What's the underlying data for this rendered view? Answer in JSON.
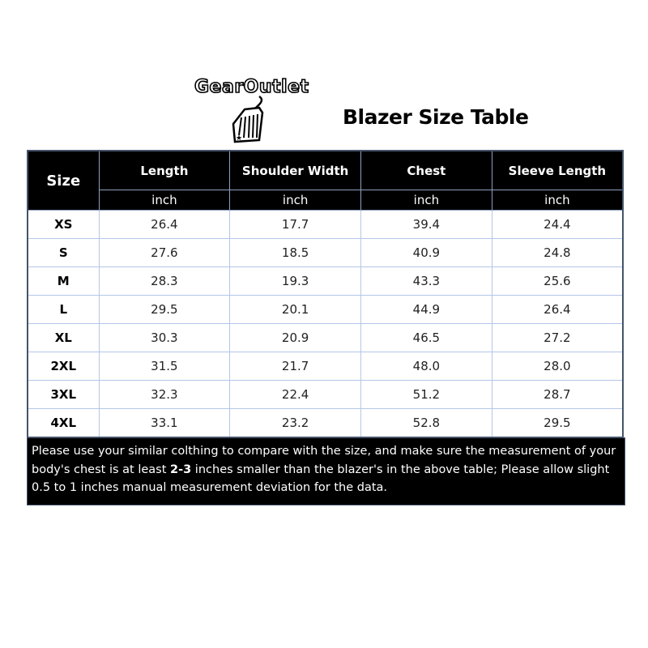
{
  "logo": {
    "text": "GearOutlet"
  },
  "title": "Blazer Size Table",
  "table": {
    "size_header": "Size",
    "columns": [
      "Length",
      "Shoulder Width",
      "Chest",
      "Sleeve Length"
    ],
    "units": [
      "inch",
      "inch",
      "inch",
      "inch"
    ],
    "rows": [
      {
        "size": "XS",
        "values": [
          "26.4",
          "17.7",
          "39.4",
          "24.4"
        ]
      },
      {
        "size": "S",
        "values": [
          "27.6",
          "18.5",
          "40.9",
          "24.8"
        ]
      },
      {
        "size": "M",
        "values": [
          "28.3",
          "19.3",
          "43.3",
          "25.6"
        ]
      },
      {
        "size": "L",
        "values": [
          "29.5",
          "20.1",
          "44.9",
          "26.4"
        ]
      },
      {
        "size": "XL",
        "values": [
          "30.3",
          "20.9",
          "46.5",
          "27.2"
        ]
      },
      {
        "size": "2XL",
        "values": [
          "31.5",
          "21.7",
          "48.0",
          "28.0"
        ]
      },
      {
        "size": "3XL",
        "values": [
          "32.3",
          "22.4",
          "51.2",
          "28.7"
        ]
      },
      {
        "size": "4XL",
        "values": [
          "33.1",
          "23.2",
          "52.8",
          "29.5"
        ]
      }
    ]
  },
  "note": {
    "before": "Please use your similar colthing to compare with the size,  and make sure the measurement of your body's chest is at least ",
    "bold": "2-3",
    "after": " inches smaller than the blazer's in the above table; Please allow slight 0.5 to 1 inches manual measurement deviation for the data."
  }
}
